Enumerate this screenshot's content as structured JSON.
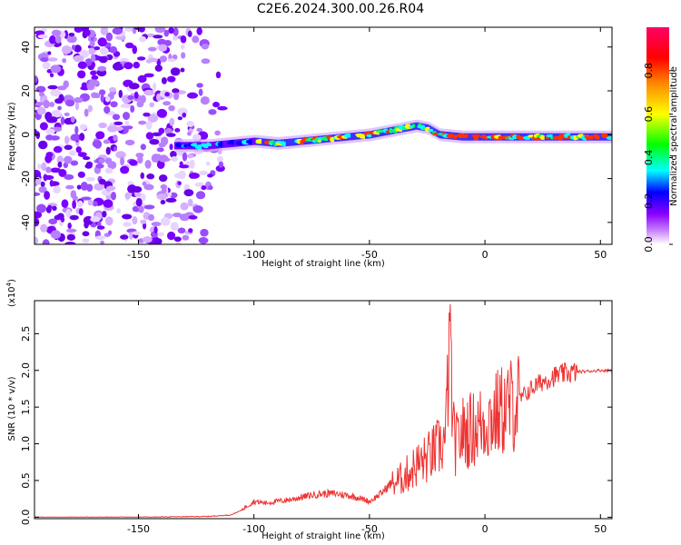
{
  "title": "C2E6.2024.300.00.26.R04",
  "chart_data": [
    {
      "type": "heatmap",
      "xlabel": "Height of straight line (km)",
      "ylabel": "Frequency (Hz)",
      "xlim": [
        -195,
        55
      ],
      "ylim": [
        -50,
        49
      ],
      "xticks": [
        -150,
        -100,
        -50,
        0,
        50
      ],
      "yticks": [
        -40,
        -20,
        0,
        20,
        40
      ],
      "ridge": {
        "x": [
          -135,
          -120,
          -110,
          -100,
          -90,
          -80,
          -70,
          -60,
          -50,
          -40,
          -30,
          -25,
          -20,
          -10,
          0,
          10,
          20,
          30,
          40,
          55
        ],
        "frequency": [
          -5,
          -5,
          -4,
          -3,
          -4,
          -3,
          -2,
          -1,
          0,
          2,
          4,
          3,
          0,
          -1,
          -1,
          -1,
          -1,
          -1,
          -1,
          -1
        ]
      },
      "colorbar": {
        "label": "Normalized spectral amplitude",
        "range": [
          0,
          1
        ],
        "ticks": [
          "0.0",
          "0.2",
          "0.4",
          "0.6",
          "0.8"
        ],
        "colors": [
          "#ffffff",
          "#8800ff",
          "#0000ff",
          "#00ffff",
          "#00ff00",
          "#ffff00",
          "#ff8800",
          "#ff0000",
          "#ff0066"
        ]
      }
    },
    {
      "type": "line",
      "xlabel": "Height of straight line (km)",
      "ylabel": "SNR (10 * v/v)",
      "y_multiplier_label": "(x10",
      "y_multiplier_exp": "4",
      "xlim": [
        -195,
        55
      ],
      "ylim": [
        -0.02,
        2.95
      ],
      "xticks": [
        -150,
        -100,
        -50,
        0,
        50
      ],
      "yticks": [
        "0.0",
        "0.5",
        "1.0",
        "1.5",
        "2.0",
        "2.5"
      ],
      "line_color": "#ee3333",
      "series": [
        {
          "x": [
            -195,
            -150,
            -120,
            -110,
            -105,
            -100,
            -95,
            -90,
            -85,
            -80,
            -75,
            -70,
            -65,
            -60,
            -55,
            -50,
            -45,
            -40,
            -35,
            -30,
            -25,
            -20,
            -17,
            -15,
            -14,
            -13,
            -12,
            -10,
            -5,
            0,
            5,
            10,
            15,
            20,
            25,
            30,
            35,
            40,
            45,
            50,
            55
          ],
          "values": [
            0.0,
            0.0,
            0.01,
            0.03,
            0.1,
            0.2,
            0.18,
            0.2,
            0.22,
            0.25,
            0.28,
            0.3,
            0.3,
            0.28,
            0.25,
            0.2,
            0.3,
            0.45,
            0.55,
            0.7,
            0.8,
            0.95,
            1.05,
            2.9,
            1.2,
            1.0,
            1.0,
            1.15,
            1.2,
            1.3,
            1.4,
            1.5,
            1.6,
            1.75,
            1.85,
            1.92,
            1.96,
            1.98,
            1.99,
            2.0,
            2.0
          ]
        }
      ]
    }
  ]
}
